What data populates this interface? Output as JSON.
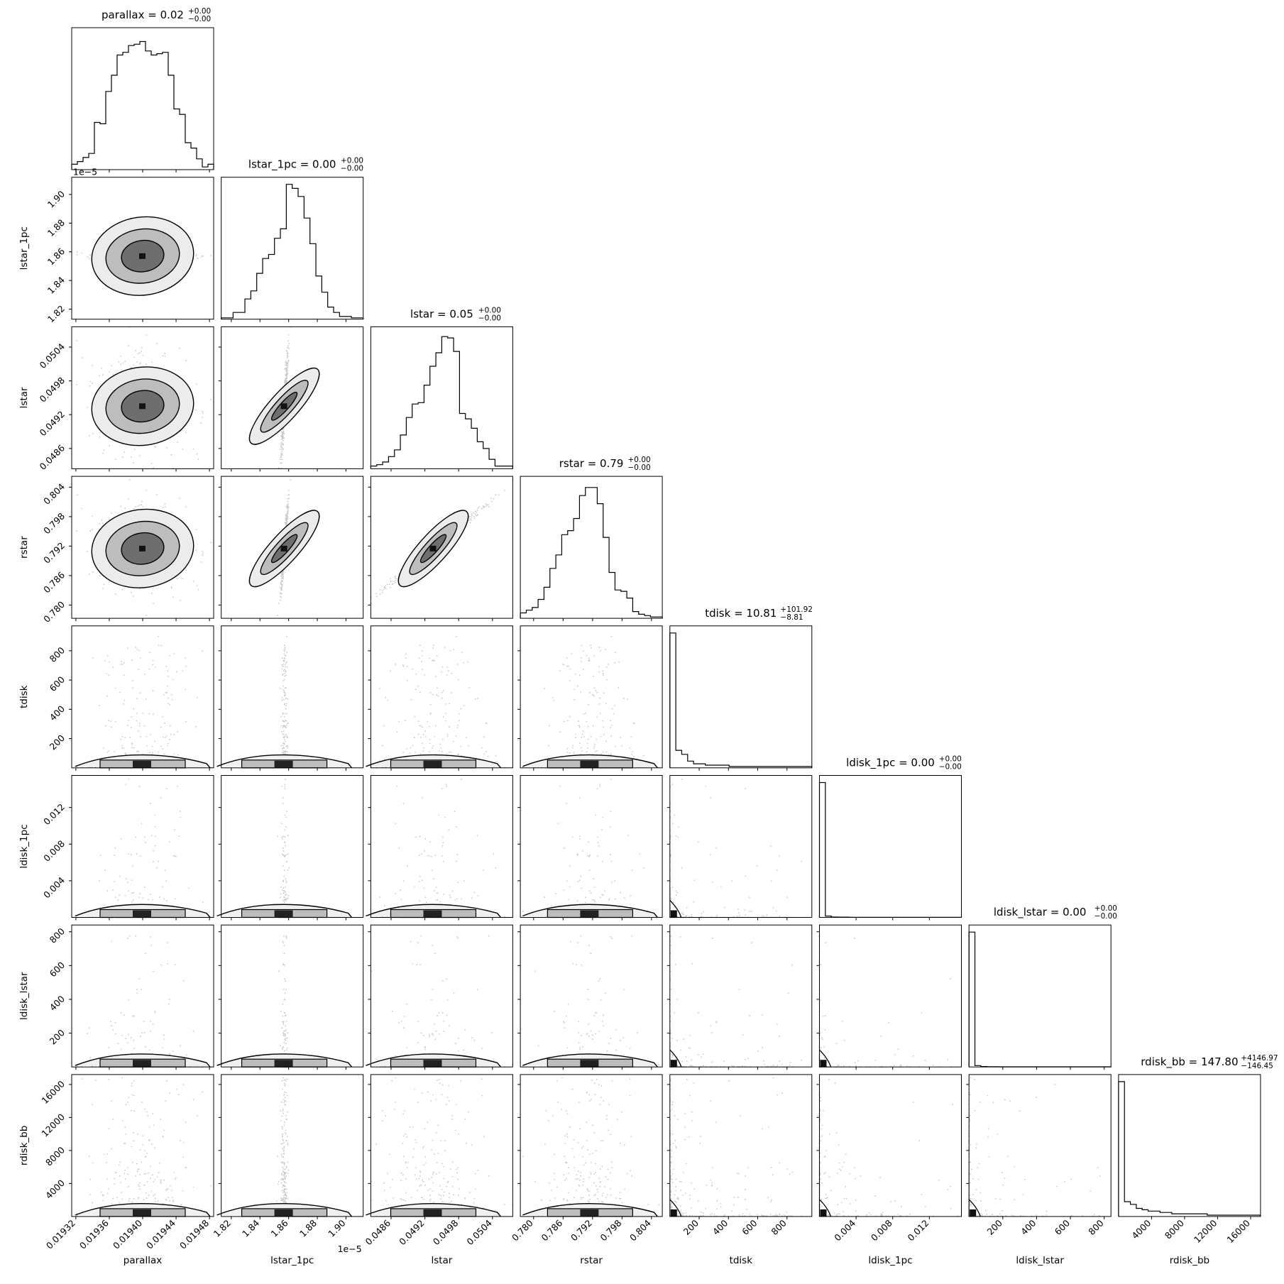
{
  "chart_data": {
    "type": "corner",
    "parameters": [
      "parallax",
      "lstar_1pc",
      "lstar",
      "rstar",
      "tdisk",
      "ldisk_1pc",
      "ldisk_lstar",
      "rdisk_bb"
    ],
    "axis_labels": [
      "parallax",
      "lstar_1pc",
      "lstar",
      "rstar",
      "tdisk",
      "ldisk_1pc",
      "ldisk_lstar",
      "rdisk_bb"
    ],
    "titles": [
      {
        "base": "parallax = 0.02",
        "sup": "+0.00",
        "sub": "−0.00"
      },
      {
        "base": "lstar_1pc = 0.00",
        "sup": "+0.00",
        "sub": "−0.00"
      },
      {
        "base": "lstar = 0.05",
        "sup": "+0.00",
        "sub": "−0.00"
      },
      {
        "base": "rstar = 0.79",
        "sup": "+0.00",
        "sub": "−0.00"
      },
      {
        "base": "tdisk = 10.81",
        "sup": "+101.92",
        "sub": "−8.81"
      },
      {
        "base": "ldisk_1pc = 0.00",
        "sup": "+0.00",
        "sub": "−0.00"
      },
      {
        "base": "ldisk_lstar = 0.00",
        "sup": "+0.00",
        "sub": "−0.00"
      },
      {
        "base": "rdisk_bb = 147.80",
        "sup": "+4146.97",
        "sub": "−146.45"
      }
    ],
    "ranges": [
      [
        0.019315,
        0.019485
      ],
      [
        1.813e-05,
        1.912e-05
      ],
      [
        0.04824,
        0.05076
      ],
      [
        0.7773,
        0.8062
      ],
      [
        0,
        970
      ],
      [
        0,
        0.0155
      ],
      [
        0,
        840
      ],
      [
        0,
        17200
      ]
    ],
    "ticks": [
      {
        "values": [
          0.01932,
          0.01936,
          0.0194,
          0.01944,
          0.01948
        ],
        "labels": [
          "0.01932",
          "0.01936",
          "0.01940",
          "0.01944",
          "0.01948"
        ]
      },
      {
        "values": [
          1.82e-05,
          1.84e-05,
          1.86e-05,
          1.88e-05,
          1.9e-05
        ],
        "labels": [
          "1.82",
          "1.84",
          "1.86",
          "1.88",
          "1.90"
        ]
      },
      {
        "values": [
          0.0486,
          0.0492,
          0.0498,
          0.0504
        ],
        "labels": [
          "0.0486",
          "0.0492",
          "0.0498",
          "0.0504"
        ]
      },
      {
        "values": [
          0.78,
          0.786,
          0.792,
          0.798,
          0.804
        ],
        "labels": [
          "0.780",
          "0.786",
          "0.792",
          "0.798",
          "0.804"
        ]
      },
      {
        "values": [
          200,
          400,
          600,
          800
        ],
        "labels": [
          "200",
          "400",
          "600",
          "800"
        ]
      },
      {
        "values": [
          0.004,
          0.008,
          0.012
        ],
        "labels": [
          "0.004",
          "0.008",
          "0.012"
        ]
      },
      {
        "values": [
          200,
          400,
          600,
          800
        ],
        "labels": [
          "200",
          "400",
          "600",
          "800"
        ]
      },
      {
        "values": [
          4000,
          8000,
          12000,
          16000
        ],
        "labels": [
          "4000",
          "8000",
          "12000",
          "16000"
        ]
      }
    ],
    "offset_text": {
      "parameter": "lstar_1pc",
      "text": "1e−5"
    },
    "histograms": [
      [
        0.04,
        0.06,
        0.09,
        0.12,
        0.35,
        0.34,
        0.58,
        0.7,
        0.85,
        0.87,
        0.92,
        0.93,
        0.95,
        0.88,
        0.85,
        0.86,
        0.87,
        0.7,
        0.45,
        0.41,
        0.2,
        0.16,
        0.08,
        0.02,
        0.04
      ],
      [
        0.01,
        0.01,
        0.05,
        0.05,
        0.15,
        0.21,
        0.34,
        0.45,
        0.48,
        0.6,
        0.67,
        1.0,
        0.97,
        0.91,
        0.75,
        0.56,
        0.32,
        0.2,
        0.09,
        0.05,
        0.02,
        0.02,
        0.01,
        0.01
      ],
      [
        0.02,
        0.03,
        0.05,
        0.09,
        0.14,
        0.25,
        0.38,
        0.48,
        0.49,
        0.62,
        0.76,
        0.86,
        0.98,
        0.97,
        0.87,
        0.41,
        0.37,
        0.3,
        0.2,
        0.15,
        0.07,
        0.02,
        0.02,
        0.02
      ],
      [
        0.04,
        0.06,
        0.08,
        0.14,
        0.23,
        0.37,
        0.47,
        0.62,
        0.65,
        0.74,
        0.91,
        0.97,
        0.97,
        0.85,
        0.6,
        0.34,
        0.21,
        0.2,
        0.15,
        0.05,
        0.03,
        0.02,
        0.01,
        0.01
      ],
      [
        1.0,
        0.13,
        0.1,
        0.05,
        0.03,
        0.03,
        0.02,
        0.02,
        0.02,
        0.02,
        0.01,
        0.01,
        0.01,
        0.01,
        0.01,
        0.01,
        0.01,
        0.01,
        0.01,
        0.01,
        0.01,
        0.01,
        0.01,
        0.01
      ],
      [
        1.0,
        0.01,
        0.003,
        0.002,
        0.002,
        0.001,
        0.001,
        0.001,
        0.001,
        0.001,
        0.001,
        0.001,
        0.001,
        0.001,
        0.001,
        0.001,
        0.001,
        0.001,
        0.001,
        0.001,
        0.001,
        0.001,
        0.001,
        0.001
      ],
      [
        1.0,
        0.01,
        0.003,
        0.002,
        0.002,
        0.001,
        0.001,
        0.001,
        0.001,
        0.001,
        0.001,
        0.001,
        0.001,
        0.001,
        0.001,
        0.001,
        0.001,
        0.001,
        0.001,
        0.001,
        0.001,
        0.001,
        0.001,
        0.001
      ],
      [
        1.0,
        0.11,
        0.09,
        0.06,
        0.05,
        0.04,
        0.04,
        0.03,
        0.03,
        0.02,
        0.02,
        0.02,
        0.02,
        0.02,
        0.02,
        0.01,
        0.01,
        0.01,
        0.01,
        0.01,
        0.01,
        0.01,
        0.01,
        0.01
      ]
    ],
    "scatter_2d": [
      {
        "x": "lstar_1pc",
        "y": "parallax",
        "correlation": "weak-negative"
      },
      {
        "x": "lstar",
        "y": "lstar_1pc",
        "correlation": "strong-positive"
      },
      {
        "x": "rstar",
        "y": "lstar",
        "correlation": "strong-positive"
      },
      {
        "x": "tdisk",
        "y": "parameters 1-4",
        "correlation": "concentrated-near-zero"
      },
      {
        "x": "ldisk_1pc",
        "y": "all",
        "correlation": "concentrated-near-zero"
      },
      {
        "x": "ldisk_lstar",
        "y": "all",
        "correlation": "concentrated-near-zero"
      },
      {
        "x": "rdisk_bb",
        "y": "all",
        "correlation": "concentrated-near-zero"
      }
    ]
  }
}
